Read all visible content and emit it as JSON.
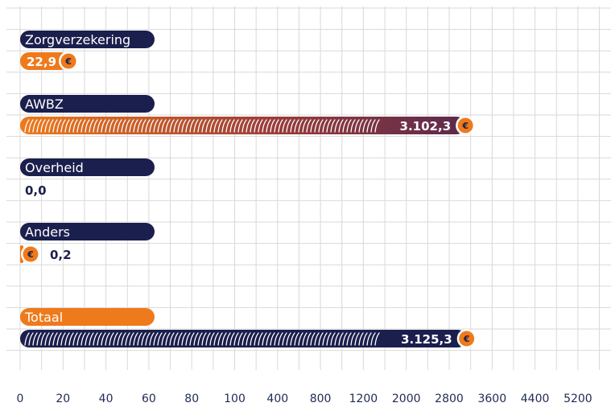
{
  "chart_data": {
    "type": "bar",
    "orientation": "horizontal",
    "title": "",
    "xlabel": "",
    "ylabel": "",
    "categories": [
      "Zorgverzekering",
      "AWBZ",
      "Overheid",
      "Anders",
      "Totaal"
    ],
    "values": [
      22.9,
      3102.3,
      0.0,
      0.2,
      3125.3
    ],
    "value_labels": [
      "22,9",
      "3.102,3",
      "0,0",
      "0,2",
      "3.125,3"
    ],
    "x_ticks": [
      0,
      20,
      40,
      60,
      80,
      100,
      400,
      800,
      1200,
      2000,
      2800,
      3600,
      4400,
      5200
    ],
    "x_tick_labels": [
      "0",
      "20",
      "40",
      "60",
      "80",
      "100",
      "400",
      "800",
      "1200",
      "2000",
      "2800",
      "3600",
      "4400",
      "5200"
    ],
    "xlim": [
      0,
      5200
    ],
    "scale": "piecewise",
    "grid": true,
    "currency_icon": "euro-icon",
    "colors": {
      "navy": "#1b1f4d",
      "orange": "#ee7a1b",
      "maroon": "#6b2d4a",
      "grid": "#d9d9d9"
    }
  }
}
